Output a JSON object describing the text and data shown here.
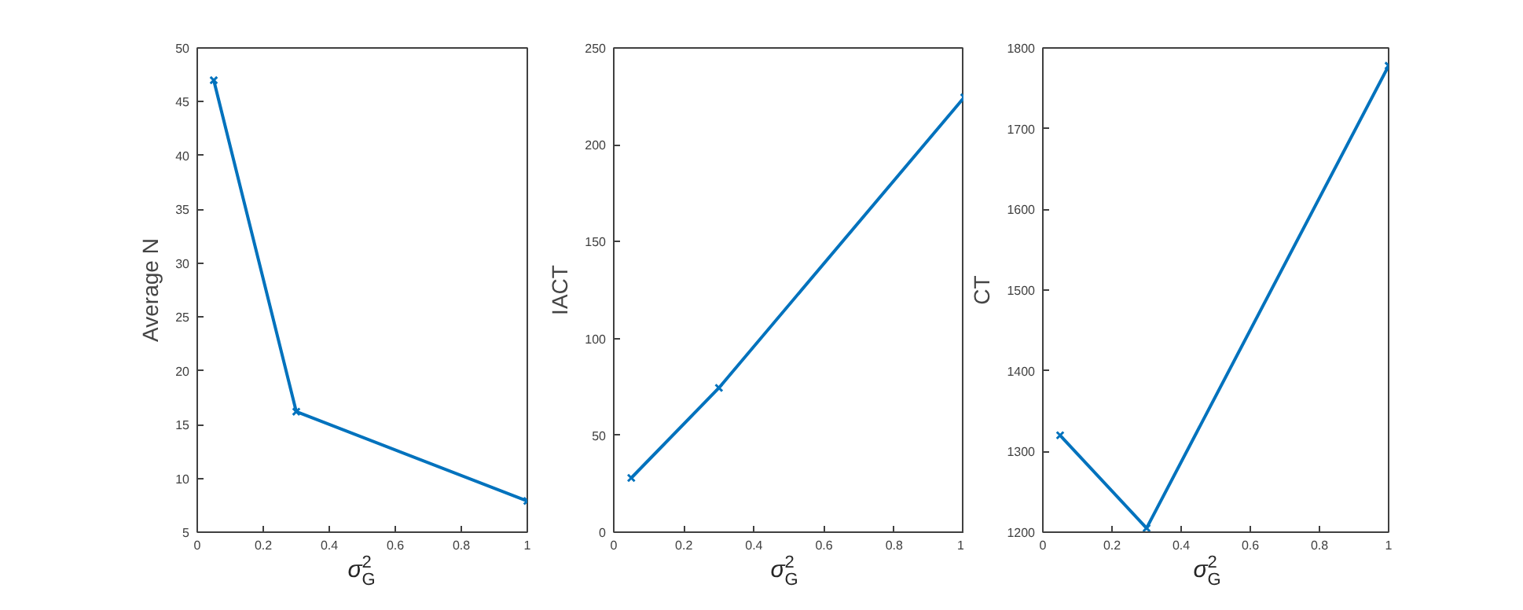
{
  "chart_data": [
    {
      "type": "line",
      "xlabel": "σ$^{2}$$_{G}$",
      "ylabel": "Average N",
      "x": [
        0.05,
        0.3,
        1
      ],
      "xlim": [
        0,
        1
      ],
      "xticks": [
        0,
        0.2,
        0.4,
        0.6,
        0.8,
        1
      ],
      "ylim": [
        5,
        50
      ],
      "yticks": [
        5,
        10,
        15,
        20,
        25,
        30,
        35,
        40,
        45,
        50
      ],
      "marker": "cross",
      "grid": false,
      "series": [
        {
          "color": "#0072bd",
          "values": [
            47,
            16.2,
            7.9
          ]
        }
      ]
    },
    {
      "type": "line",
      "xlabel": "σ$^{2}$$_{G}$",
      "ylabel": "IACT",
      "x": [
        0.05,
        0.3,
        1
      ],
      "xlim": [
        0,
        1
      ],
      "xticks": [
        0,
        0.2,
        0.4,
        0.6,
        0.8,
        1
      ],
      "ylim": [
        0,
        250
      ],
      "yticks": [
        0,
        50,
        100,
        150,
        200,
        250
      ],
      "marker": "cross",
      "grid": false,
      "series": [
        {
          "color": "#0072bd",
          "values": [
            28,
            74.5,
            224.5
          ]
        }
      ]
    },
    {
      "type": "line",
      "xlabel": "σ$^{2}$$_{G}$",
      "ylabel": "CT",
      "x": [
        0.05,
        0.3,
        1
      ],
      "xlim": [
        0,
        1
      ],
      "xticks": [
        0,
        0.2,
        0.4,
        0.6,
        0.8,
        1
      ],
      "ylim": [
        1200,
        1800
      ],
      "yticks": [
        1200,
        1300,
        1400,
        1500,
        1600,
        1700,
        1800
      ],
      "marker": "cross",
      "grid": false,
      "series": [
        {
          "color": "#0072bd",
          "values": [
            1320,
            1205,
            1778
          ]
        }
      ]
    }
  ]
}
